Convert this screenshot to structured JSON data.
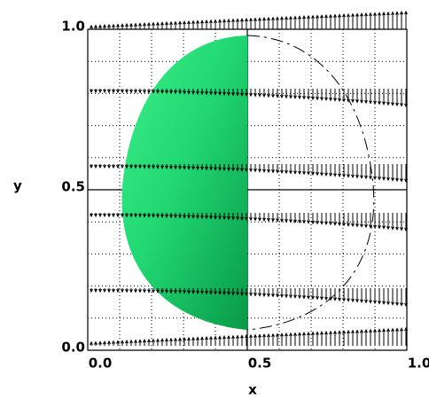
{
  "chart_data": {
    "type": "vector",
    "xlabel": "x",
    "ylabel": "y",
    "xlim": [
      0,
      1
    ],
    "ylim": [
      0,
      1
    ],
    "xticks": [
      {
        "value": 0,
        "label": "0.0"
      },
      {
        "value": 0.5,
        "label": "0.5"
      },
      {
        "value": 1,
        "label": "1.0"
      }
    ],
    "yticks": [
      {
        "value": 0,
        "label": "0.0"
      },
      {
        "value": 0.5,
        "label": "0.5"
      },
      {
        "value": 1,
        "label": "1.0"
      }
    ],
    "grid": true
  }
}
